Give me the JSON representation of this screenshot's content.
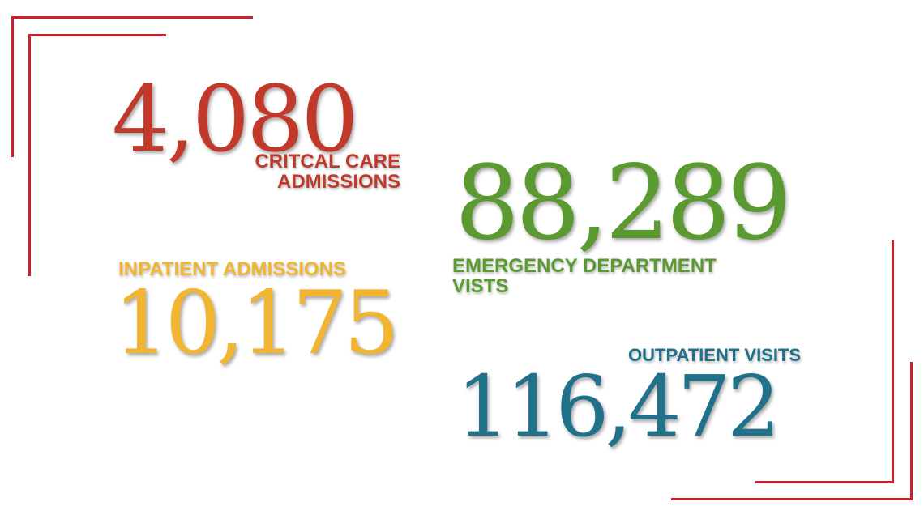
{
  "colors": {
    "frame": "#cc1f2b",
    "critical_care": "#c0392b",
    "emergency": "#5a9a30",
    "inpatient": "#f2b531",
    "outpatient": "#22718a"
  },
  "stats": {
    "critical_care": {
      "value": "4,080",
      "label_line1": "CRITCAL CARE",
      "label_line2": "ADMISSIONS"
    },
    "emergency": {
      "value": "88,289",
      "label_line1": "EMERGENCY DEPARTMENT",
      "label_line2": "VISTS"
    },
    "inpatient": {
      "value": "10,175",
      "label": "INPATIENT ADMISSIONS"
    },
    "outpatient": {
      "value": "116,472",
      "label": "OUTPATIENT VISITS"
    }
  }
}
